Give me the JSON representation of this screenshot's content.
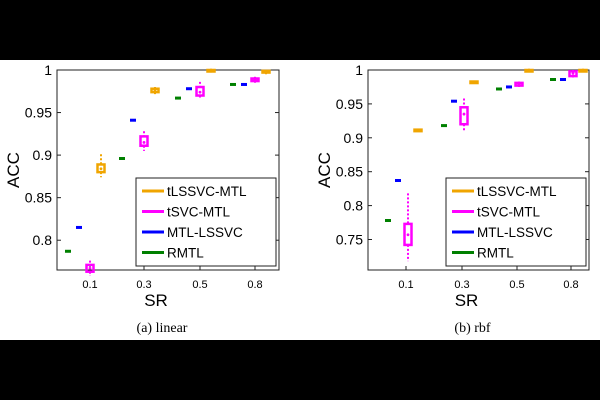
{
  "chart_data": [
    {
      "type": "box",
      "caption": "(a)  linear",
      "xlabel": "SR",
      "ylabel": "ACC",
      "ylim": [
        0.765,
        1.0
      ],
      "x_ticks": [
        "0.1",
        "0.3",
        "0.5",
        "0.8"
      ],
      "y_ticks": [
        "0.8",
        "0.85",
        "0.9",
        "0.95",
        "1"
      ],
      "legend": {
        "placement": "bottom-right",
        "entries": [
          "tLSSVC-MTL",
          "tSVC-MTL",
          "MTL-LSSVC",
          "RMTL"
        ]
      },
      "series": [
        {
          "name": "RMTL",
          "color": "#008000",
          "boxes": [
            {
              "sr": "0.1",
              "median": 0.787
            },
            {
              "sr": "0.3",
              "median": 0.896
            },
            {
              "sr": "0.5",
              "median": 0.967
            },
            {
              "sr": "0.8",
              "median": 0.983
            }
          ]
        },
        {
          "name": "MTL-LSSVC",
          "color": "#0000ff",
          "boxes": [
            {
              "sr": "0.1",
              "median": 0.815
            },
            {
              "sr": "0.3",
              "median": 0.941
            },
            {
              "sr": "0.5",
              "median": 0.978
            },
            {
              "sr": "0.8",
              "median": 0.983
            }
          ]
        },
        {
          "name": "tSVC-MTL",
          "color": "#ff00ff",
          "boxes": [
            {
              "sr": "0.1",
              "min": 0.758,
              "q1": 0.763,
              "median": 0.767,
              "q3": 0.771,
              "max": 0.776
            },
            {
              "sr": "0.3",
              "min": 0.905,
              "q1": 0.911,
              "median": 0.915,
              "q3": 0.922,
              "max": 0.928
            },
            {
              "sr": "0.5",
              "min": 0.966,
              "q1": 0.97,
              "median": 0.974,
              "q3": 0.98,
              "max": 0.986
            },
            {
              "sr": "0.8",
              "min": 0.985,
              "q1": 0.987,
              "median": 0.989,
              "q3": 0.99,
              "max": 0.992
            }
          ]
        },
        {
          "name": "tLSSVC-MTL",
          "color": "#f0a500",
          "boxes": [
            {
              "sr": "0.1",
              "min": 0.874,
              "q1": 0.88,
              "median": 0.884,
              "q3": 0.889,
              "max": 0.901
            },
            {
              "sr": "0.3",
              "min": 0.97,
              "q1": 0.974,
              "median": 0.976,
              "q3": 0.978,
              "max": 0.98
            },
            {
              "sr": "0.5",
              "min": 0.997,
              "q1": 0.999,
              "median": 1.0,
              "q3": 1.0,
              "max": 1.0
            },
            {
              "sr": "0.8",
              "min": 0.995,
              "q1": 0.997,
              "median": 0.998,
              "q3": 0.999,
              "max": 1.0
            }
          ]
        }
      ]
    },
    {
      "type": "box",
      "caption": "(b)  rbf",
      "xlabel": "SR",
      "ylabel": "ACC",
      "ylim": [
        0.705,
        1.0
      ],
      "x_ticks": [
        "0.1",
        "0.3",
        "0.5",
        "0.8"
      ],
      "y_ticks": [
        "0.75",
        "0.8",
        "0.85",
        "0.9",
        "0.95",
        "1"
      ],
      "legend": {
        "placement": "bottom-right",
        "entries": [
          "tLSSVC-MTL",
          "tSVC-MTL",
          "MTL-LSSVC",
          "RMTL"
        ]
      },
      "series": [
        {
          "name": "RMTL",
          "color": "#008000",
          "boxes": [
            {
              "sr": "0.1",
              "median": 0.778
            },
            {
              "sr": "0.3",
              "median": 0.918
            },
            {
              "sr": "0.5",
              "median": 0.972
            },
            {
              "sr": "0.8",
              "median": 0.986
            }
          ]
        },
        {
          "name": "MTL-LSSVC",
          "color": "#0000ff",
          "boxes": [
            {
              "sr": "0.1",
              "median": 0.837
            },
            {
              "sr": "0.3",
              "median": 0.954
            },
            {
              "sr": "0.5",
              "median": 0.975
            },
            {
              "sr": "0.8",
              "median": 0.986
            }
          ]
        },
        {
          "name": "tSVC-MTL",
          "color": "#ff00ff",
          "boxes": [
            {
              "sr": "0.1",
              "min": 0.718,
              "q1": 0.742,
              "median": 0.757,
              "q3": 0.773,
              "max": 0.818
            },
            {
              "sr": "0.3",
              "min": 0.91,
              "q1": 0.92,
              "median": 0.935,
              "q3": 0.945,
              "max": 0.958
            },
            {
              "sr": "0.5",
              "min": 0.975,
              "q1": 0.977,
              "median": 0.979,
              "q3": 0.981,
              "max": 0.983
            },
            {
              "sr": "0.8",
              "min": 0.989,
              "q1": 0.991,
              "median": 0.995,
              "q3": 0.998,
              "max": 1.0
            }
          ]
        },
        {
          "name": "tLSSVC-MTL",
          "color": "#f0a500",
          "boxes": [
            {
              "sr": "0.1",
              "min": 0.91,
              "q1": 0.91,
              "median": 0.911,
              "q3": 0.912,
              "max": 0.912
            },
            {
              "sr": "0.3",
              "min": 0.98,
              "q1": 0.981,
              "median": 0.982,
              "q3": 0.983,
              "max": 0.983
            },
            {
              "sr": "0.5",
              "min": 0.999,
              "q1": 1.0,
              "median": 1.0,
              "q3": 1.0,
              "max": 1.0
            },
            {
              "sr": "0.8",
              "min": 0.999,
              "q1": 1.0,
              "median": 1.0,
              "q3": 1.0,
              "max": 1.0
            }
          ]
        }
      ]
    }
  ]
}
